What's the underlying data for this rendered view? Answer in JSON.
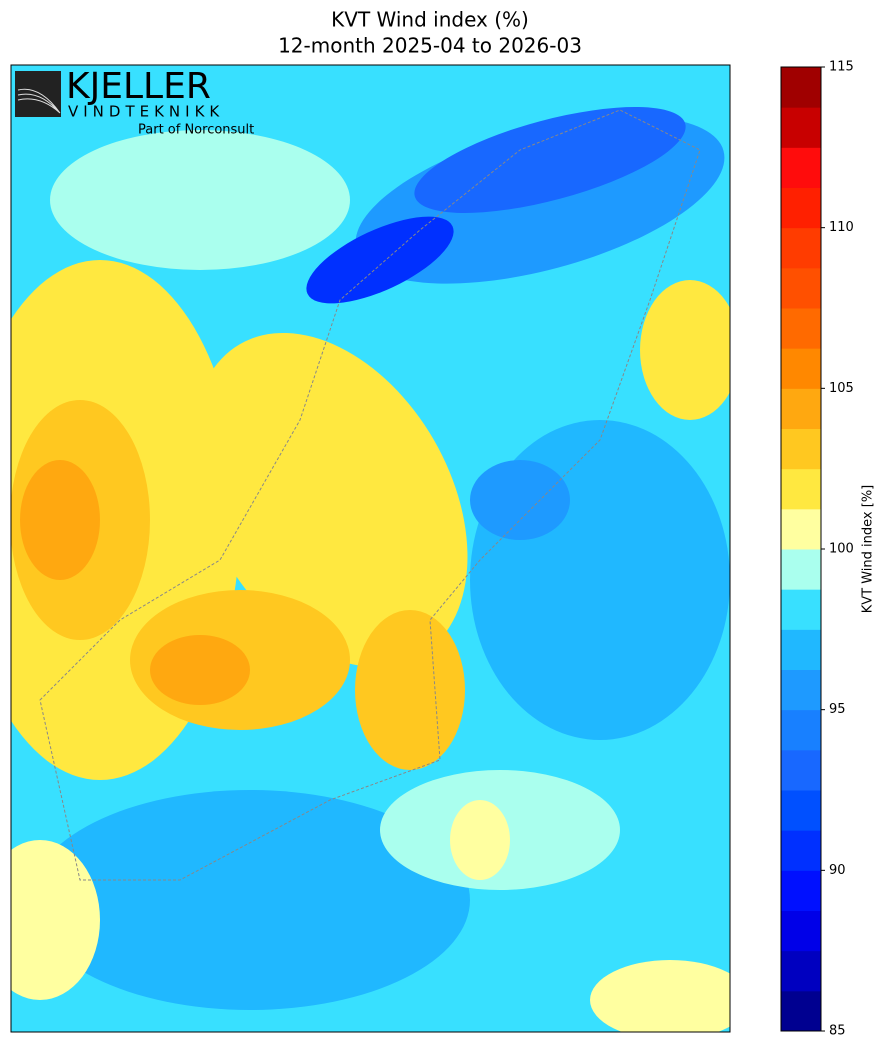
{
  "chart_data": {
    "type": "colormap",
    "title": "KVT Wind index (%)",
    "subtitle": "12-month 2025-04 to 2026-03",
    "colorbar_label": "KVT Wind index [%]",
    "clim": [
      85,
      115
    ],
    "cticks": [
      85,
      90,
      95,
      100,
      105,
      110,
      115
    ],
    "colors": [
      "#000090",
      "#0000c0",
      "#0000e8",
      "#0010ff",
      "#0030ff",
      "#0050ff",
      "#1868ff",
      "#1880ff",
      "#1e9aff",
      "#20b8ff",
      "#38e0ff",
      "#aaffee",
      "#ffffa0",
      "#ffe840",
      "#ffc820",
      "#ffa810",
      "#ff8800",
      "#ff6a00",
      "#ff5000",
      "#ff3c00",
      "#ff2000",
      "#ff0c0c",
      "#c80000",
      "#a00000"
    ]
  },
  "logo": {
    "name": "KJELLER",
    "sub": "VINDTEKNIKK",
    "tagline": "Part of Norconsult"
  }
}
